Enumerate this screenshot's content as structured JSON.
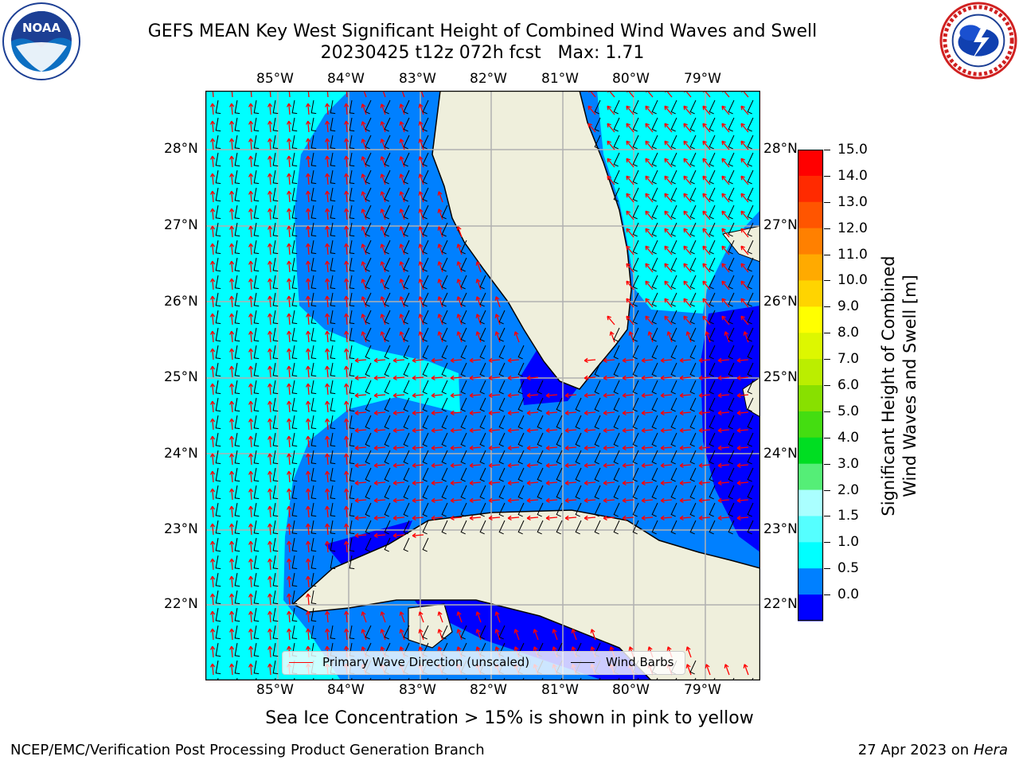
{
  "title": {
    "line1": "GEFS MEAN Key West Significant Height of Combined Wind Waves and Swell",
    "line2": "20230425 t12z 072h fcst   Max: 1.71"
  },
  "logos": {
    "left": {
      "name": "noaa-logo",
      "text": "NOAA"
    },
    "right": {
      "name": "national-weather-service-logo"
    }
  },
  "map": {
    "lon_labels": [
      "85°W",
      "84°W",
      "83°W",
      "82°W",
      "81°W",
      "80°W",
      "79°W"
    ],
    "lat_labels": [
      "28°N",
      "27°N",
      "26°N",
      "25°N",
      "24°N",
      "23°N",
      "22°N"
    ],
    "land_color": "#efefdc",
    "grid_color": "#b0b0b0"
  },
  "legend": {
    "wave_label": "Primary Wave Direction (unscaled)",
    "wave_color": "#ff0000",
    "barb_label": "Wind Barbs",
    "barb_color": "#000000"
  },
  "colorbar": {
    "ticks": [
      "15.0",
      "14.0",
      "13.0",
      "12.0",
      "11.0",
      "10.0",
      "9.0",
      "8.0",
      "7.0",
      "6.0",
      "5.0",
      "4.0",
      "3.0",
      "2.0",
      "1.5",
      "1.0",
      "0.5",
      "0.0"
    ],
    "colors": [
      "#ff0000",
      "#ff2a00",
      "#ff5500",
      "#ff8000",
      "#ffaa00",
      "#ffd400",
      "#ffff00",
      "#ddf700",
      "#bbee00",
      "#88e000",
      "#44dd11",
      "#00dd22",
      "#55ee77",
      "#aaffff",
      "#55ffff",
      "#00ffff",
      "#0080ff",
      "#0000ff"
    ],
    "label_line1": "Significant Height of Combined",
    "label_line2": "Wind Waves and Swell [m]"
  },
  "footer": {
    "note": "Sea Ice Concentration > 15% is shown in pink to yellow",
    "credit": "NCEP/EMC/Verification Post Processing Product Generation Branch",
    "date": "27 Apr 2023 on",
    "host": "Hera"
  }
}
